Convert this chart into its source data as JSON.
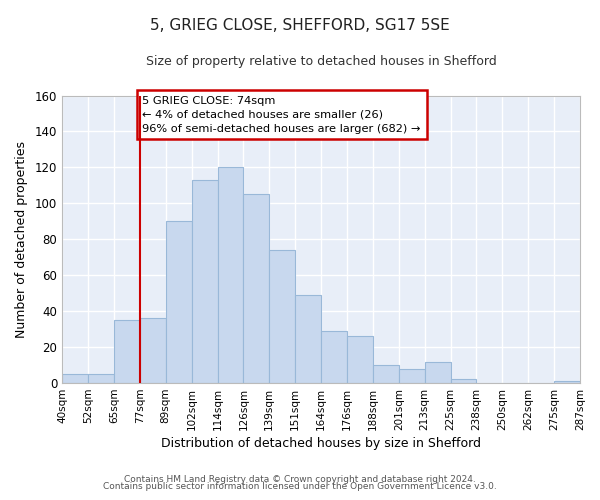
{
  "title": "5, GRIEG CLOSE, SHEFFORD, SG17 5SE",
  "subtitle": "Size of property relative to detached houses in Shefford",
  "xlabel": "Distribution of detached houses by size in Shefford",
  "ylabel": "Number of detached properties",
  "bar_heights": [
    5,
    5,
    35,
    36,
    90,
    113,
    120,
    105,
    74,
    49,
    29,
    26,
    10,
    8,
    12,
    2,
    0,
    0,
    0,
    1
  ],
  "xtick_labels": [
    "40sqm",
    "52sqm",
    "65sqm",
    "77sqm",
    "89sqm",
    "102sqm",
    "114sqm",
    "126sqm",
    "139sqm",
    "151sqm",
    "164sqm",
    "176sqm",
    "188sqm",
    "201sqm",
    "213sqm",
    "225sqm",
    "238sqm",
    "250sqm",
    "262sqm",
    "275sqm",
    "287sqm"
  ],
  "bar_color": "#c8d8ee",
  "bar_edge_color": "#99b8d8",
  "vline_x_bin": 3,
  "vline_color": "#cc0000",
  "ylim": [
    0,
    160
  ],
  "yticks": [
    0,
    20,
    40,
    60,
    80,
    100,
    120,
    140,
    160
  ],
  "annotation_title": "5 GRIEG CLOSE: 74sqm",
  "annotation_line1": "← 4% of detached houses are smaller (26)",
  "annotation_line2": "96% of semi-detached houses are larger (682) →",
  "footer1": "Contains HM Land Registry data © Crown copyright and database right 2024.",
  "footer2": "Contains public sector information licensed under the Open Government Licence v3.0.",
  "fig_bg_color": "#ffffff",
  "plot_bg_color": "#e8eef8",
  "grid_color": "#ffffff"
}
